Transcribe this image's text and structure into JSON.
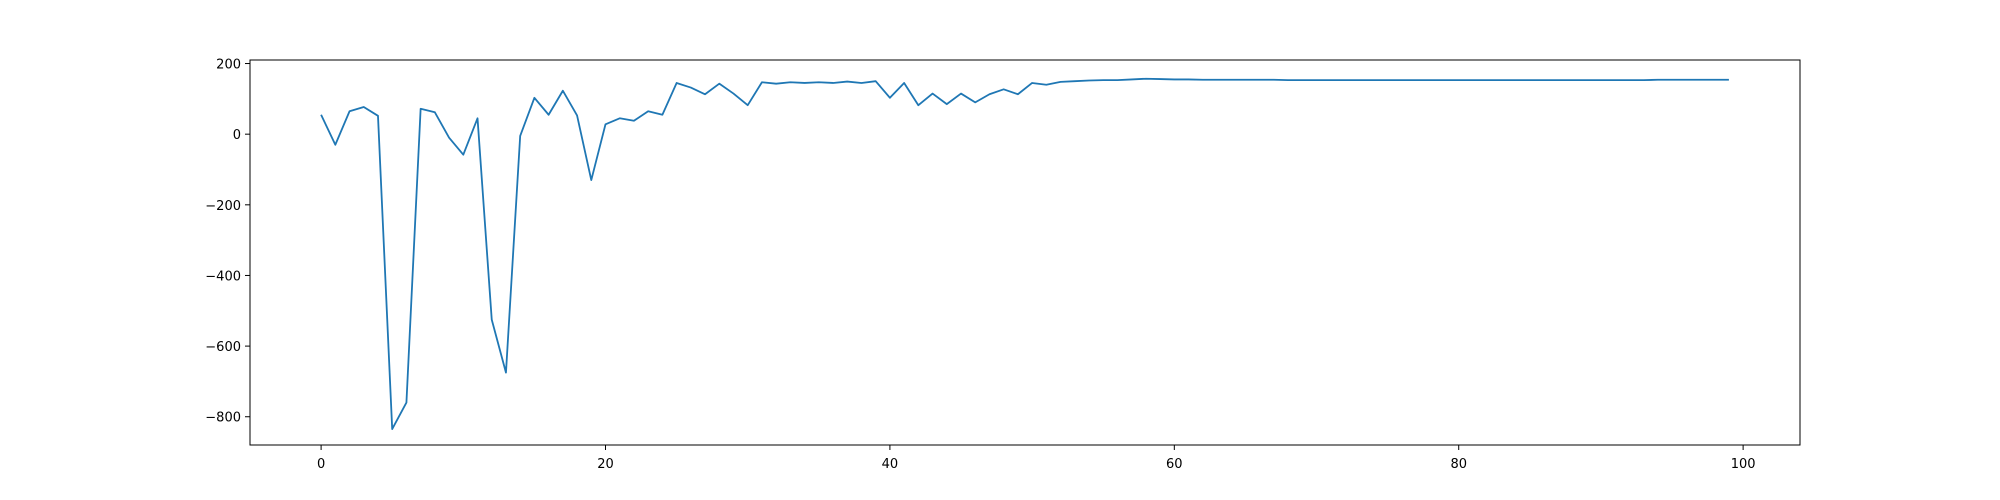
{
  "chart_data": {
    "type": "line",
    "title": "",
    "xlabel": "",
    "ylabel": "",
    "xlim": [
      -5,
      104
    ],
    "ylim": [
      -880,
      210
    ],
    "x_ticks": [
      0,
      20,
      40,
      60,
      80,
      100
    ],
    "x_tick_labels": [
      "0",
      "20",
      "40",
      "60",
      "80",
      "100"
    ],
    "y_ticks": [
      200,
      0,
      -200,
      -400,
      -600,
      -800
    ],
    "y_tick_labels": [
      "200",
      "0",
      "−200",
      "−400",
      "−600",
      "−800"
    ],
    "grid": false,
    "legend": "none",
    "series": [
      {
        "color": "#1f77b4",
        "x": [
          0,
          1,
          2,
          3,
          4,
          5,
          6,
          7,
          8,
          9,
          10,
          11,
          12,
          13,
          14,
          15,
          16,
          17,
          18,
          19,
          20,
          21,
          22,
          23,
          24,
          25,
          26,
          27,
          28,
          29,
          30,
          31,
          32,
          33,
          34,
          35,
          36,
          37,
          38,
          39,
          40,
          41,
          42,
          43,
          44,
          45,
          46,
          47,
          48,
          49,
          50,
          51,
          52,
          53,
          54,
          55,
          56,
          57,
          58,
          59,
          60,
          61,
          62,
          63,
          64,
          65,
          66,
          67,
          68,
          69,
          70,
          71,
          72,
          73,
          74,
          75,
          76,
          77,
          78,
          79,
          80,
          81,
          82,
          83,
          84,
          85,
          86,
          87,
          88,
          89,
          90,
          91,
          92,
          93,
          94,
          95,
          96,
          97,
          98,
          99
        ],
        "values": [
          55,
          -30,
          65,
          77,
          52,
          -835,
          -760,
          72,
          62,
          -10,
          -58,
          45,
          -525,
          -675,
          -5,
          103,
          55,
          123,
          53,
          -130,
          28,
          45,
          38,
          65,
          55,
          145,
          132,
          113,
          143,
          115,
          82,
          147,
          143,
          147,
          145,
          147,
          145,
          149,
          145,
          150,
          103,
          145,
          82,
          115,
          85,
          115,
          90,
          113,
          127,
          113,
          145,
          140,
          148,
          150,
          152,
          153,
          153,
          155,
          157,
          156,
          155,
          155,
          154,
          154,
          154,
          154,
          154,
          154,
          153,
          153,
          153,
          153,
          153,
          153,
          153,
          153,
          153,
          153,
          153,
          153,
          153,
          153,
          153,
          153,
          153,
          153,
          153,
          153,
          153,
          153,
          153,
          153,
          153,
          153,
          154,
          154,
          154,
          154,
          154,
          154
        ]
      }
    ]
  }
}
